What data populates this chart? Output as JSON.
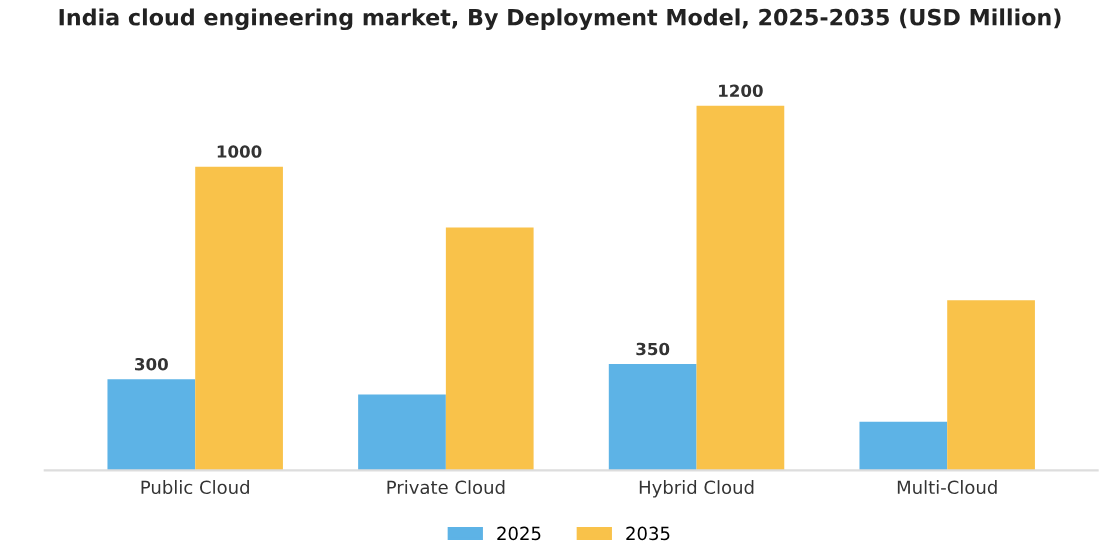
{
  "chart_data": {
    "type": "bar",
    "title": "India cloud engineering market, By Deployment Model, 2025-2035 (USD Million)",
    "categories": [
      "Public Cloud",
      "Private Cloud",
      "Hybrid Cloud",
      "Multi-Cloud"
    ],
    "series": [
      {
        "name": "2025",
        "color": "#5db3e6",
        "values": [
          300,
          250,
          350,
          160
        ],
        "value_labels": [
          "300",
          null,
          "350",
          null
        ]
      },
      {
        "name": "2035",
        "color": "#f9c24a",
        "values": [
          1000,
          800,
          1200,
          560
        ],
        "value_labels": [
          "1000",
          null,
          "1200",
          null
        ]
      }
    ],
    "tick_labels": "x",
    "grid": false,
    "legend": "bottom"
  }
}
